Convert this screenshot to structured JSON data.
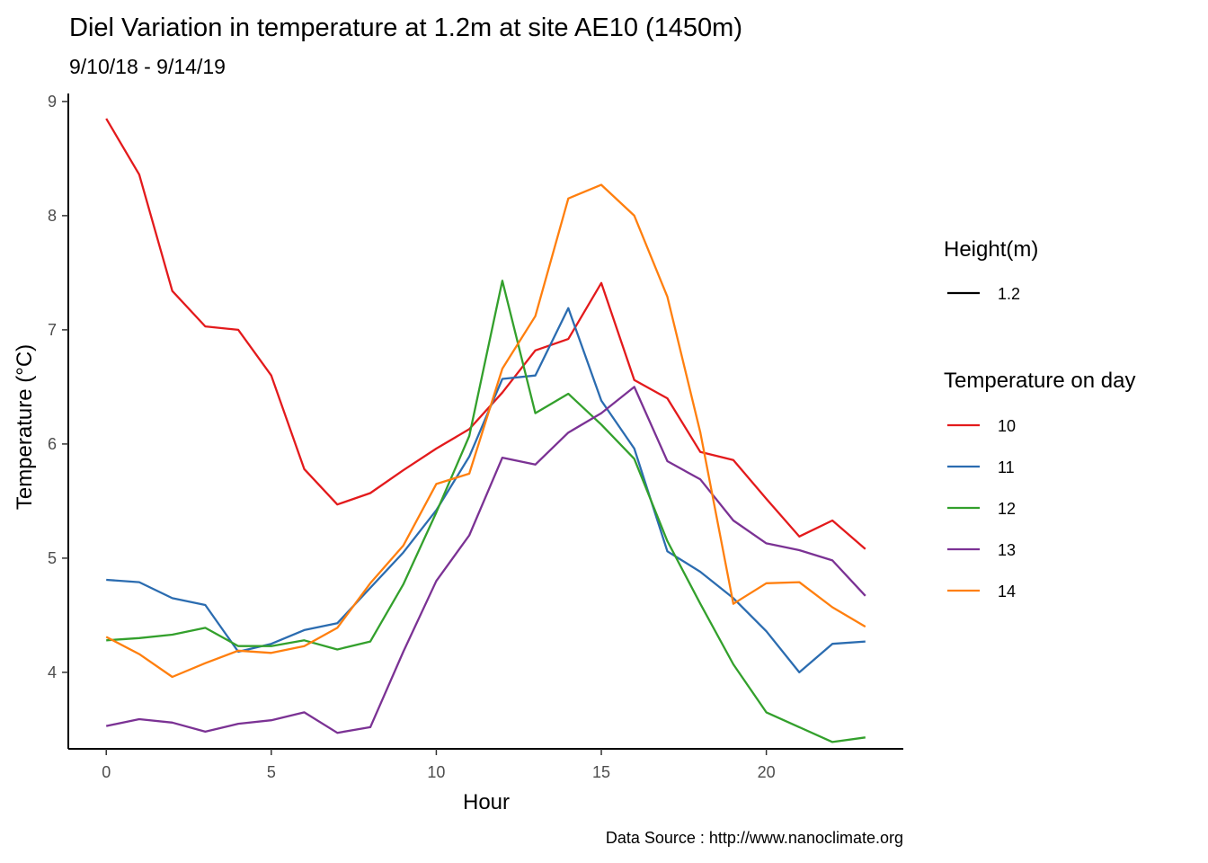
{
  "chart_data": {
    "type": "line",
    "title": "Diel Variation in temperature at 1.2m at site AE10 (1450m)",
    "subtitle": "9/10/18 - 9/14/19",
    "xlabel": "Hour",
    "ylabel": "Temperature (°C)",
    "caption": "Data Source : http://www.nanoclimate.org",
    "xlim": [
      -1.15,
      24.15
    ],
    "ylim": [
      3.33,
      9.07
    ],
    "xticks": [
      0,
      5,
      10,
      15,
      20
    ],
    "yticks": [
      4,
      5,
      6,
      7,
      8,
      9
    ],
    "grid": false,
    "legend_position": "right",
    "legend_linetype": {
      "title": "Height(m)",
      "entries": [
        "1.2"
      ],
      "color": "#000000"
    },
    "legend_color_title": "Temperature on day",
    "x": [
      0,
      1,
      2,
      3,
      4,
      5,
      6,
      7,
      8,
      9,
      10,
      11,
      12,
      13,
      14,
      15,
      16,
      17,
      18,
      19,
      20,
      21,
      22,
      23
    ],
    "series": [
      {
        "name": "10",
        "color": "#e31a1c",
        "values": [
          8.85,
          8.36,
          7.34,
          7.03,
          7.0,
          6.6,
          5.78,
          5.47,
          5.57,
          5.77,
          5.96,
          6.13,
          6.45,
          6.82,
          6.92,
          7.41,
          6.56,
          6.4,
          5.93,
          5.86,
          5.52,
          5.19,
          5.33,
          5.08
        ]
      },
      {
        "name": "11",
        "color": "#2b6cb0",
        "values": [
          4.81,
          4.79,
          4.65,
          4.59,
          4.18,
          4.25,
          4.37,
          4.43,
          4.74,
          5.05,
          5.42,
          5.89,
          6.57,
          6.6,
          7.19,
          6.38,
          5.96,
          5.06,
          4.88,
          4.65,
          4.36,
          4.0,
          4.25,
          4.27
        ]
      },
      {
        "name": "12",
        "color": "#33a02c",
        "values": [
          4.28,
          4.3,
          4.33,
          4.39,
          4.23,
          4.23,
          4.28,
          4.2,
          4.27,
          4.77,
          5.4,
          6.07,
          7.43,
          6.27,
          6.44,
          6.17,
          5.87,
          5.15,
          4.6,
          4.07,
          3.65,
          3.52,
          3.39,
          3.43
        ]
      },
      {
        "name": "13",
        "color": "#7b3294",
        "values": [
          3.53,
          3.59,
          3.56,
          3.48,
          3.55,
          3.58,
          3.65,
          3.47,
          3.52,
          4.18,
          4.8,
          5.2,
          5.88,
          5.82,
          6.1,
          6.27,
          6.5,
          5.85,
          5.69,
          5.33,
          5.13,
          5.07,
          4.98,
          4.67
        ]
      },
      {
        "name": "14",
        "color": "#ff7f0e",
        "values": [
          4.31,
          4.16,
          3.96,
          4.08,
          4.19,
          4.17,
          4.23,
          4.39,
          4.78,
          5.11,
          5.65,
          5.74,
          6.66,
          7.12,
          8.15,
          8.27,
          8.0,
          7.29,
          6.1,
          4.6,
          4.78,
          4.79,
          4.57,
          4.4
        ]
      }
    ]
  }
}
